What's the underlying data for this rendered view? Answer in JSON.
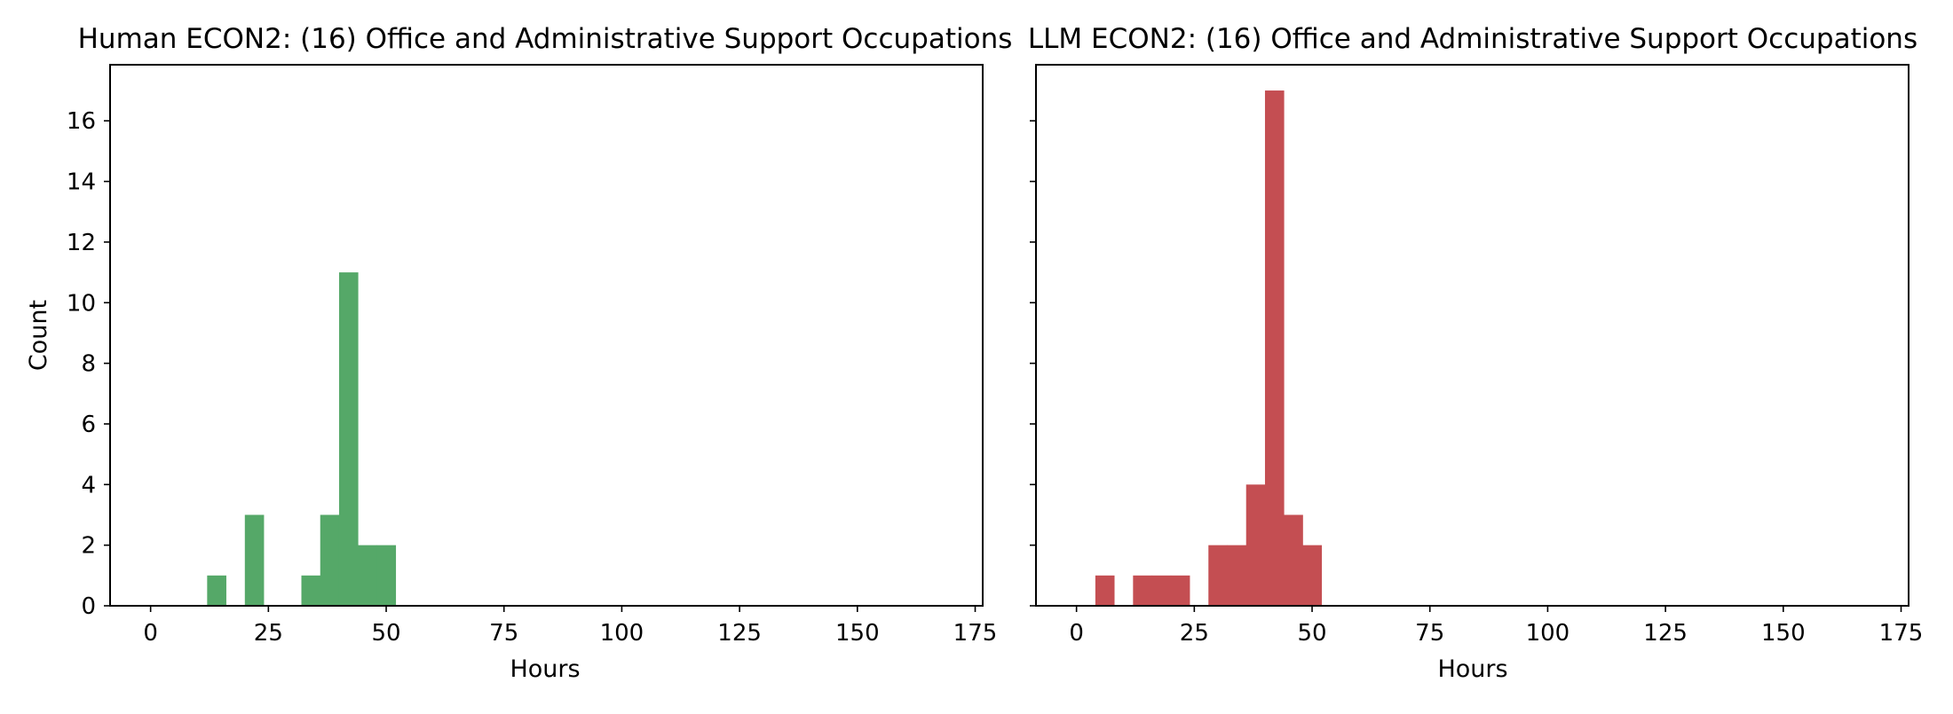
{
  "chart_data": [
    {
      "type": "bar",
      "title": "Human ECON2: (16) Office and Administrative Support Occupations",
      "xlabel": "Hours",
      "ylabel": "Count",
      "xlim": [
        -8.6,
        176.6
      ],
      "ylim": [
        0,
        17.85
      ],
      "xticks": [
        0,
        25,
        50,
        75,
        100,
        125,
        150,
        175
      ],
      "yticks": [
        0,
        2,
        4,
        6,
        8,
        10,
        12,
        14,
        16
      ],
      "color": "#55a868",
      "bins": [
        {
          "x0": 12,
          "x1": 16,
          "count": 1
        },
        {
          "x0": 20,
          "x1": 24,
          "count": 3
        },
        {
          "x0": 32,
          "x1": 36,
          "count": 1
        },
        {
          "x0": 36,
          "x1": 40,
          "count": 3
        },
        {
          "x0": 40,
          "x1": 44,
          "count": 11
        },
        {
          "x0": 44,
          "x1": 48,
          "count": 2
        },
        {
          "x0": 48,
          "x1": 52,
          "count": 2
        }
      ]
    },
    {
      "type": "bar",
      "title": "LLM ECON2: (16) Office and Administrative Support Occupations",
      "xlabel": "Hours",
      "ylabel": "",
      "xlim": [
        -8.6,
        176.6
      ],
      "ylim": [
        0,
        17.85
      ],
      "xticks": [
        0,
        25,
        50,
        75,
        100,
        125,
        150,
        175
      ],
      "yticks": [
        0,
        2,
        4,
        6,
        8,
        10,
        12,
        14,
        16
      ],
      "color": "#c44e52",
      "bins": [
        {
          "x0": 4,
          "x1": 8,
          "count": 1
        },
        {
          "x0": 12,
          "x1": 16,
          "count": 1
        },
        {
          "x0": 16,
          "x1": 20,
          "count": 1
        },
        {
          "x0": 20,
          "x1": 24,
          "count": 1
        },
        {
          "x0": 28,
          "x1": 32,
          "count": 2
        },
        {
          "x0": 32,
          "x1": 36,
          "count": 2
        },
        {
          "x0": 36,
          "x1": 40,
          "count": 4
        },
        {
          "x0": 40,
          "x1": 44,
          "count": 17
        },
        {
          "x0": 44,
          "x1": 48,
          "count": 3
        },
        {
          "x0": 48,
          "x1": 52,
          "count": 2
        }
      ]
    }
  ]
}
